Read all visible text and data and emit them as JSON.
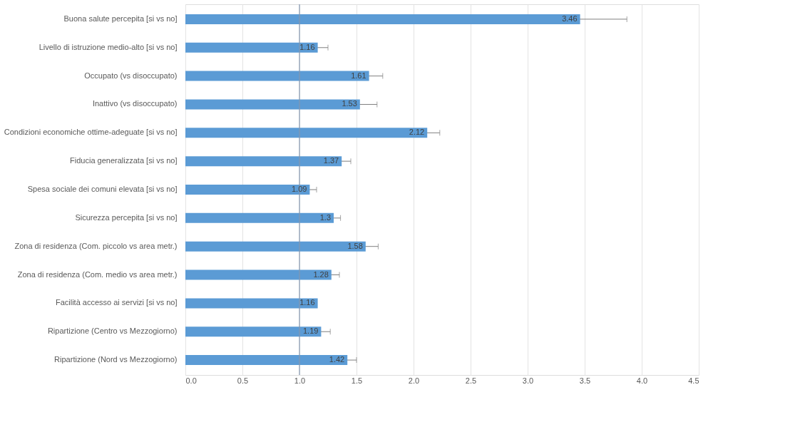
{
  "chart_data": {
    "type": "bar",
    "orientation": "horizontal",
    "categories": [
      "Buona salute percepita [si vs no]",
      "Livello di istruzione medio-alto [si vs no]",
      "Occupato (vs disoccupato)",
      "Inattivo (vs disoccupato)",
      "Condizioni economiche ottime-adeguate [si vs no]",
      "Fiducia generalizzata [si vs no]",
      "Spesa sociale dei comuni elevata [si vs no]",
      "Sicurezza percepita [si vs no]",
      "Zona di residenza (Com. piccolo vs area metr.)",
      "Zona di residenza (Com. medio vs area metr.)",
      "Facilità accesso ai servizi [si vs no]",
      "Ripartizione (Centro vs Mezzogiorno)",
      "Ripartizione (Nord vs Mezzogiorno)"
    ],
    "values": [
      3.46,
      1.16,
      1.61,
      1.53,
      2.12,
      1.37,
      1.09,
      1.3,
      1.58,
      1.28,
      1.16,
      1.19,
      1.42
    ],
    "errors": [
      0.41,
      0.09,
      0.12,
      0.15,
      0.11,
      0.08,
      0.06,
      0.06,
      0.11,
      0.07,
      null,
      0.08,
      0.08
    ],
    "color": "#5b9bd5",
    "data_labels": true,
    "xlim": [
      0,
      4.5
    ],
    "xticks": [
      {
        "value": 0,
        "label": "0.0"
      },
      0.5,
      {
        "value": 1,
        "label": "1.0"
      },
      1.5,
      {
        "value": 2,
        "label": "2.0"
      },
      2.5,
      {
        "value": 3,
        "label": "3.0"
      },
      3.5,
      {
        "value": 4,
        "label": "4.0"
      },
      4.5
    ],
    "grid": "x",
    "ref_lines": [
      {
        "axis": "x",
        "value": 1,
        "color": "#8497b0"
      }
    ]
  }
}
